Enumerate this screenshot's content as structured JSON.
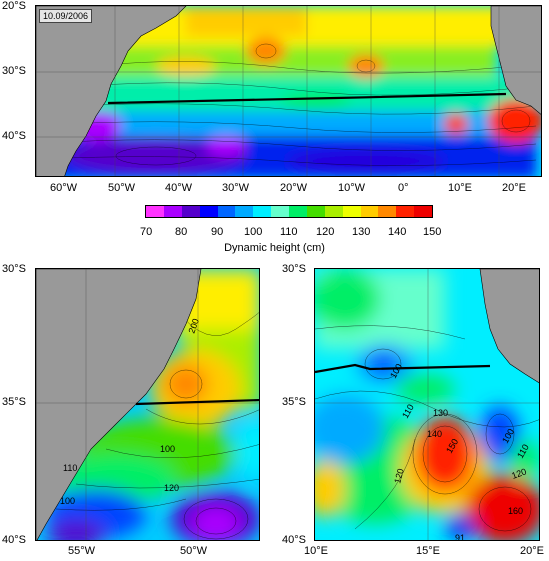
{
  "top_map": {
    "date": "10.09/2006",
    "y_ticks": [
      "20°S",
      "30°S",
      "40°S"
    ],
    "x_ticks": [
      "60°W",
      "50°W",
      "40°W",
      "30°W",
      "20°W",
      "10°W",
      "0°",
      "10°E",
      "20°E"
    ]
  },
  "colorbar": {
    "title": "Dynamic height (cm)",
    "labels": [
      "70",
      "80",
      "90",
      "100",
      "110",
      "120",
      "130",
      "140",
      "150"
    ],
    "colors": [
      "#ff33ff",
      "#aa00ff",
      "#5500cc",
      "#0000ff",
      "#0066ff",
      "#00aaff",
      "#00eeff",
      "#66ffcc",
      "#00ee66",
      "#44dd00",
      "#aaee00",
      "#eeff00",
      "#ffcc00",
      "#ff8800",
      "#ff2200",
      "#ee0000"
    ]
  },
  "bottom_left_map": {
    "y_ticks": [
      "30°S",
      "35°S",
      "40°S"
    ],
    "x_ticks": [
      "55°W",
      "50°W"
    ],
    "contour_labels": [
      "200",
      "100",
      "110",
      "100",
      "120"
    ]
  },
  "bottom_right_map": {
    "y_ticks": [
      "30°S",
      "35°S",
      "40°S"
    ],
    "x_ticks": [
      "10°E",
      "15°E",
      "20°E"
    ],
    "contour_labels": [
      "100",
      "110",
      "130",
      "140",
      "150",
      "120",
      "100",
      "110",
      "120",
      "160",
      "91"
    ]
  }
}
